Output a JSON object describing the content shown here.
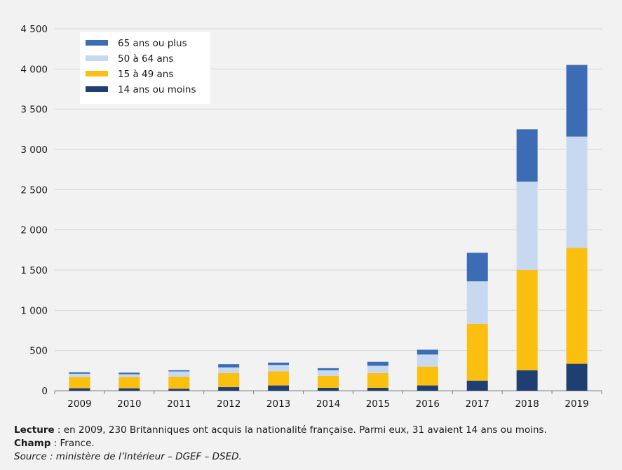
{
  "chart_data": {
    "type": "bar",
    "stacked": true,
    "categories": [
      "2009",
      "2010",
      "2011",
      "2012",
      "2013",
      "2014",
      "2015",
      "2016",
      "2017",
      "2018",
      "2019"
    ],
    "series": [
      {
        "name": "14 ans ou moins",
        "color": "#1f3f73",
        "values": [
          31,
          30,
          25,
          45,
          65,
          35,
          35,
          65,
          125,
          255,
          335
        ]
      },
      {
        "name": "15 à 49 ans",
        "color": "#fbbf0f",
        "values": [
          140,
          140,
          150,
          175,
          175,
          150,
          185,
          235,
          705,
          1245,
          1440
        ]
      },
      {
        "name": "50 à 64 ans",
        "color": "#c6d9f0",
        "values": [
          40,
          35,
          65,
          70,
          80,
          70,
          90,
          150,
          530,
          1100,
          1385
        ]
      },
      {
        "name": "65 ans ou plus",
        "color": "#3c6cb4",
        "values": [
          19,
          20,
          15,
          40,
          30,
          25,
          50,
          60,
          355,
          650,
          890
        ]
      }
    ],
    "ylim": [
      0,
      4500
    ],
    "yticks": [
      0,
      500,
      1000,
      1500,
      2000,
      2500,
      3000,
      3500,
      4000,
      4500
    ],
    "ytick_labels": [
      "0",
      "500",
      "1 000",
      "1 500",
      "2 000",
      "2 500",
      "3 000",
      "3 500",
      "4 000",
      "4 500"
    ],
    "grid": true,
    "legend_position": "top-left"
  },
  "notes": {
    "lecture_label": "Lecture",
    "lecture_text": " : en 2009, 230 Britanniques ont acquis la nationalité française. Parmi eux, 31 avaient 14 ans ou moins.",
    "champ_label": "Champ",
    "champ_text": " : France.",
    "source": "Source : ministère de l’Intérieur – DGEF – DSED."
  }
}
